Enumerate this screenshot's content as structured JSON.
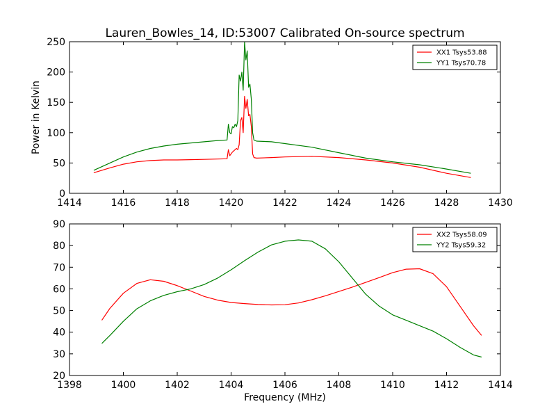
{
  "title": "Lauren_Bowles_14, ID:53007 Calibrated On-source spectrum",
  "colors": {
    "xx": "#ff0000",
    "yy": "#008000"
  },
  "chart_data": [
    {
      "type": "line",
      "title": "Lauren_Bowles_14, ID:53007 Calibrated On-source spectrum",
      "xlabel": "",
      "ylabel": "Power in Kelvin",
      "xlim": [
        1414,
        1430
      ],
      "ylim": [
        0,
        250
      ],
      "xticks": [
        "1414",
        "1416",
        "1418",
        "1420",
        "1422",
        "1424",
        "1426",
        "1428",
        "1430"
      ],
      "yticks": [
        "0",
        "50",
        "100",
        "150",
        "200",
        "250"
      ],
      "grid": false,
      "legend_position": "top-right",
      "series": [
        {
          "name": "XX1 Tsys53.88",
          "color": "#ff0000",
          "x": [
            1414.9,
            1415.5,
            1416.0,
            1416.5,
            1417.0,
            1417.5,
            1418.0,
            1418.5,
            1419.0,
            1419.5,
            1419.85,
            1419.9,
            1419.95,
            1420.05,
            1420.15,
            1420.2,
            1420.25,
            1420.3,
            1420.35,
            1420.4,
            1420.45,
            1420.5,
            1420.55,
            1420.6,
            1420.65,
            1420.7,
            1420.75,
            1420.8,
            1420.85,
            1420.95,
            1421.5,
            1422.0,
            1423.0,
            1424.0,
            1425.0,
            1426.0,
            1427.0,
            1428.0,
            1428.9
          ],
          "y": [
            34,
            42,
            48,
            52,
            54,
            55,
            55,
            55.5,
            56,
            56.5,
            57,
            72,
            62,
            68,
            72,
            74,
            72,
            80,
            120,
            125,
            100,
            160,
            140,
            155,
            128,
            130,
            110,
            65,
            59,
            58,
            59,
            60,
            61,
            59,
            55,
            50,
            43,
            33,
            26
          ]
        },
        {
          "name": "YY1 Tsys70.78",
          "color": "#008000",
          "x": [
            1414.9,
            1415.5,
            1416.0,
            1416.5,
            1417.0,
            1417.5,
            1418.0,
            1418.5,
            1419.0,
            1419.5,
            1419.85,
            1419.9,
            1419.95,
            1420.0,
            1420.05,
            1420.1,
            1420.15,
            1420.2,
            1420.25,
            1420.3,
            1420.35,
            1420.4,
            1420.45,
            1420.5,
            1420.55,
            1420.6,
            1420.65,
            1420.7,
            1420.75,
            1420.8,
            1420.85,
            1420.95,
            1421.5,
            1422.0,
            1423.0,
            1424.0,
            1425.0,
            1426.0,
            1427.0,
            1428.0,
            1428.9
          ],
          "y": [
            38,
            50,
            60,
            68,
            74,
            78,
            81,
            83,
            85,
            87,
            88,
            114,
            100,
            98,
            110,
            108,
            114,
            110,
            120,
            195,
            185,
            200,
            170,
            250,
            220,
            235,
            175,
            180,
            155,
            100,
            88,
            86,
            85,
            82,
            76,
            67,
            58,
            52,
            47,
            40,
            33
          ]
        }
      ]
    },
    {
      "type": "line",
      "title": "",
      "xlabel": "Frequency (MHz)",
      "ylabel": "",
      "xlim": [
        1398,
        1414
      ],
      "ylim": [
        20,
        90
      ],
      "xticks": [
        "1398",
        "1400",
        "1402",
        "1404",
        "1406",
        "1408",
        "1410",
        "1412",
        "1414"
      ],
      "yticks": [
        "20",
        "30",
        "40",
        "50",
        "60",
        "70",
        "80",
        "90"
      ],
      "grid": false,
      "legend_position": "top-right",
      "series": [
        {
          "name": "XX2 Tsys58.09",
          "color": "#ff0000",
          "x": [
            1399.2,
            1399.5,
            1400.0,
            1400.5,
            1401.0,
            1401.5,
            1402.0,
            1402.5,
            1403.0,
            1403.5,
            1404.0,
            1404.5,
            1405.0,
            1405.5,
            1406.0,
            1406.5,
            1407.0,
            1407.5,
            1408.0,
            1408.5,
            1409.0,
            1409.5,
            1410.0,
            1410.5,
            1411.0,
            1411.5,
            1412.0,
            1412.5,
            1413.0,
            1413.3
          ],
          "y": [
            45.5,
            51,
            58,
            62.5,
            64.2,
            63.5,
            61.5,
            59,
            56.5,
            54.8,
            53.7,
            53.2,
            52.8,
            52.6,
            52.7,
            53.5,
            55,
            56.8,
            58.8,
            60.8,
            63,
            65.2,
            67.5,
            69.1,
            69.3,
            67,
            61,
            52,
            43,
            38.5
          ]
        },
        {
          "name": "YY2 Tsys59.32",
          "color": "#008000",
          "x": [
            1399.2,
            1399.5,
            1400.0,
            1400.5,
            1401.0,
            1401.5,
            1402.0,
            1402.5,
            1403.0,
            1403.5,
            1404.0,
            1404.5,
            1405.0,
            1405.5,
            1406.0,
            1406.5,
            1407.0,
            1407.5,
            1408.0,
            1408.5,
            1409.0,
            1409.5,
            1410.0,
            1410.5,
            1411.0,
            1411.5,
            1412.0,
            1412.5,
            1413.0,
            1413.3
          ],
          "y": [
            34.8,
            38.5,
            45,
            50.8,
            54.5,
            57,
            58.7,
            60,
            62,
            65,
            68.8,
            73,
            77,
            80.3,
            82,
            82.6,
            82,
            78.5,
            72.5,
            65,
            57.5,
            52,
            48,
            45.5,
            43,
            40.5,
            37,
            33,
            29.5,
            28.5
          ]
        }
      ]
    }
  ]
}
